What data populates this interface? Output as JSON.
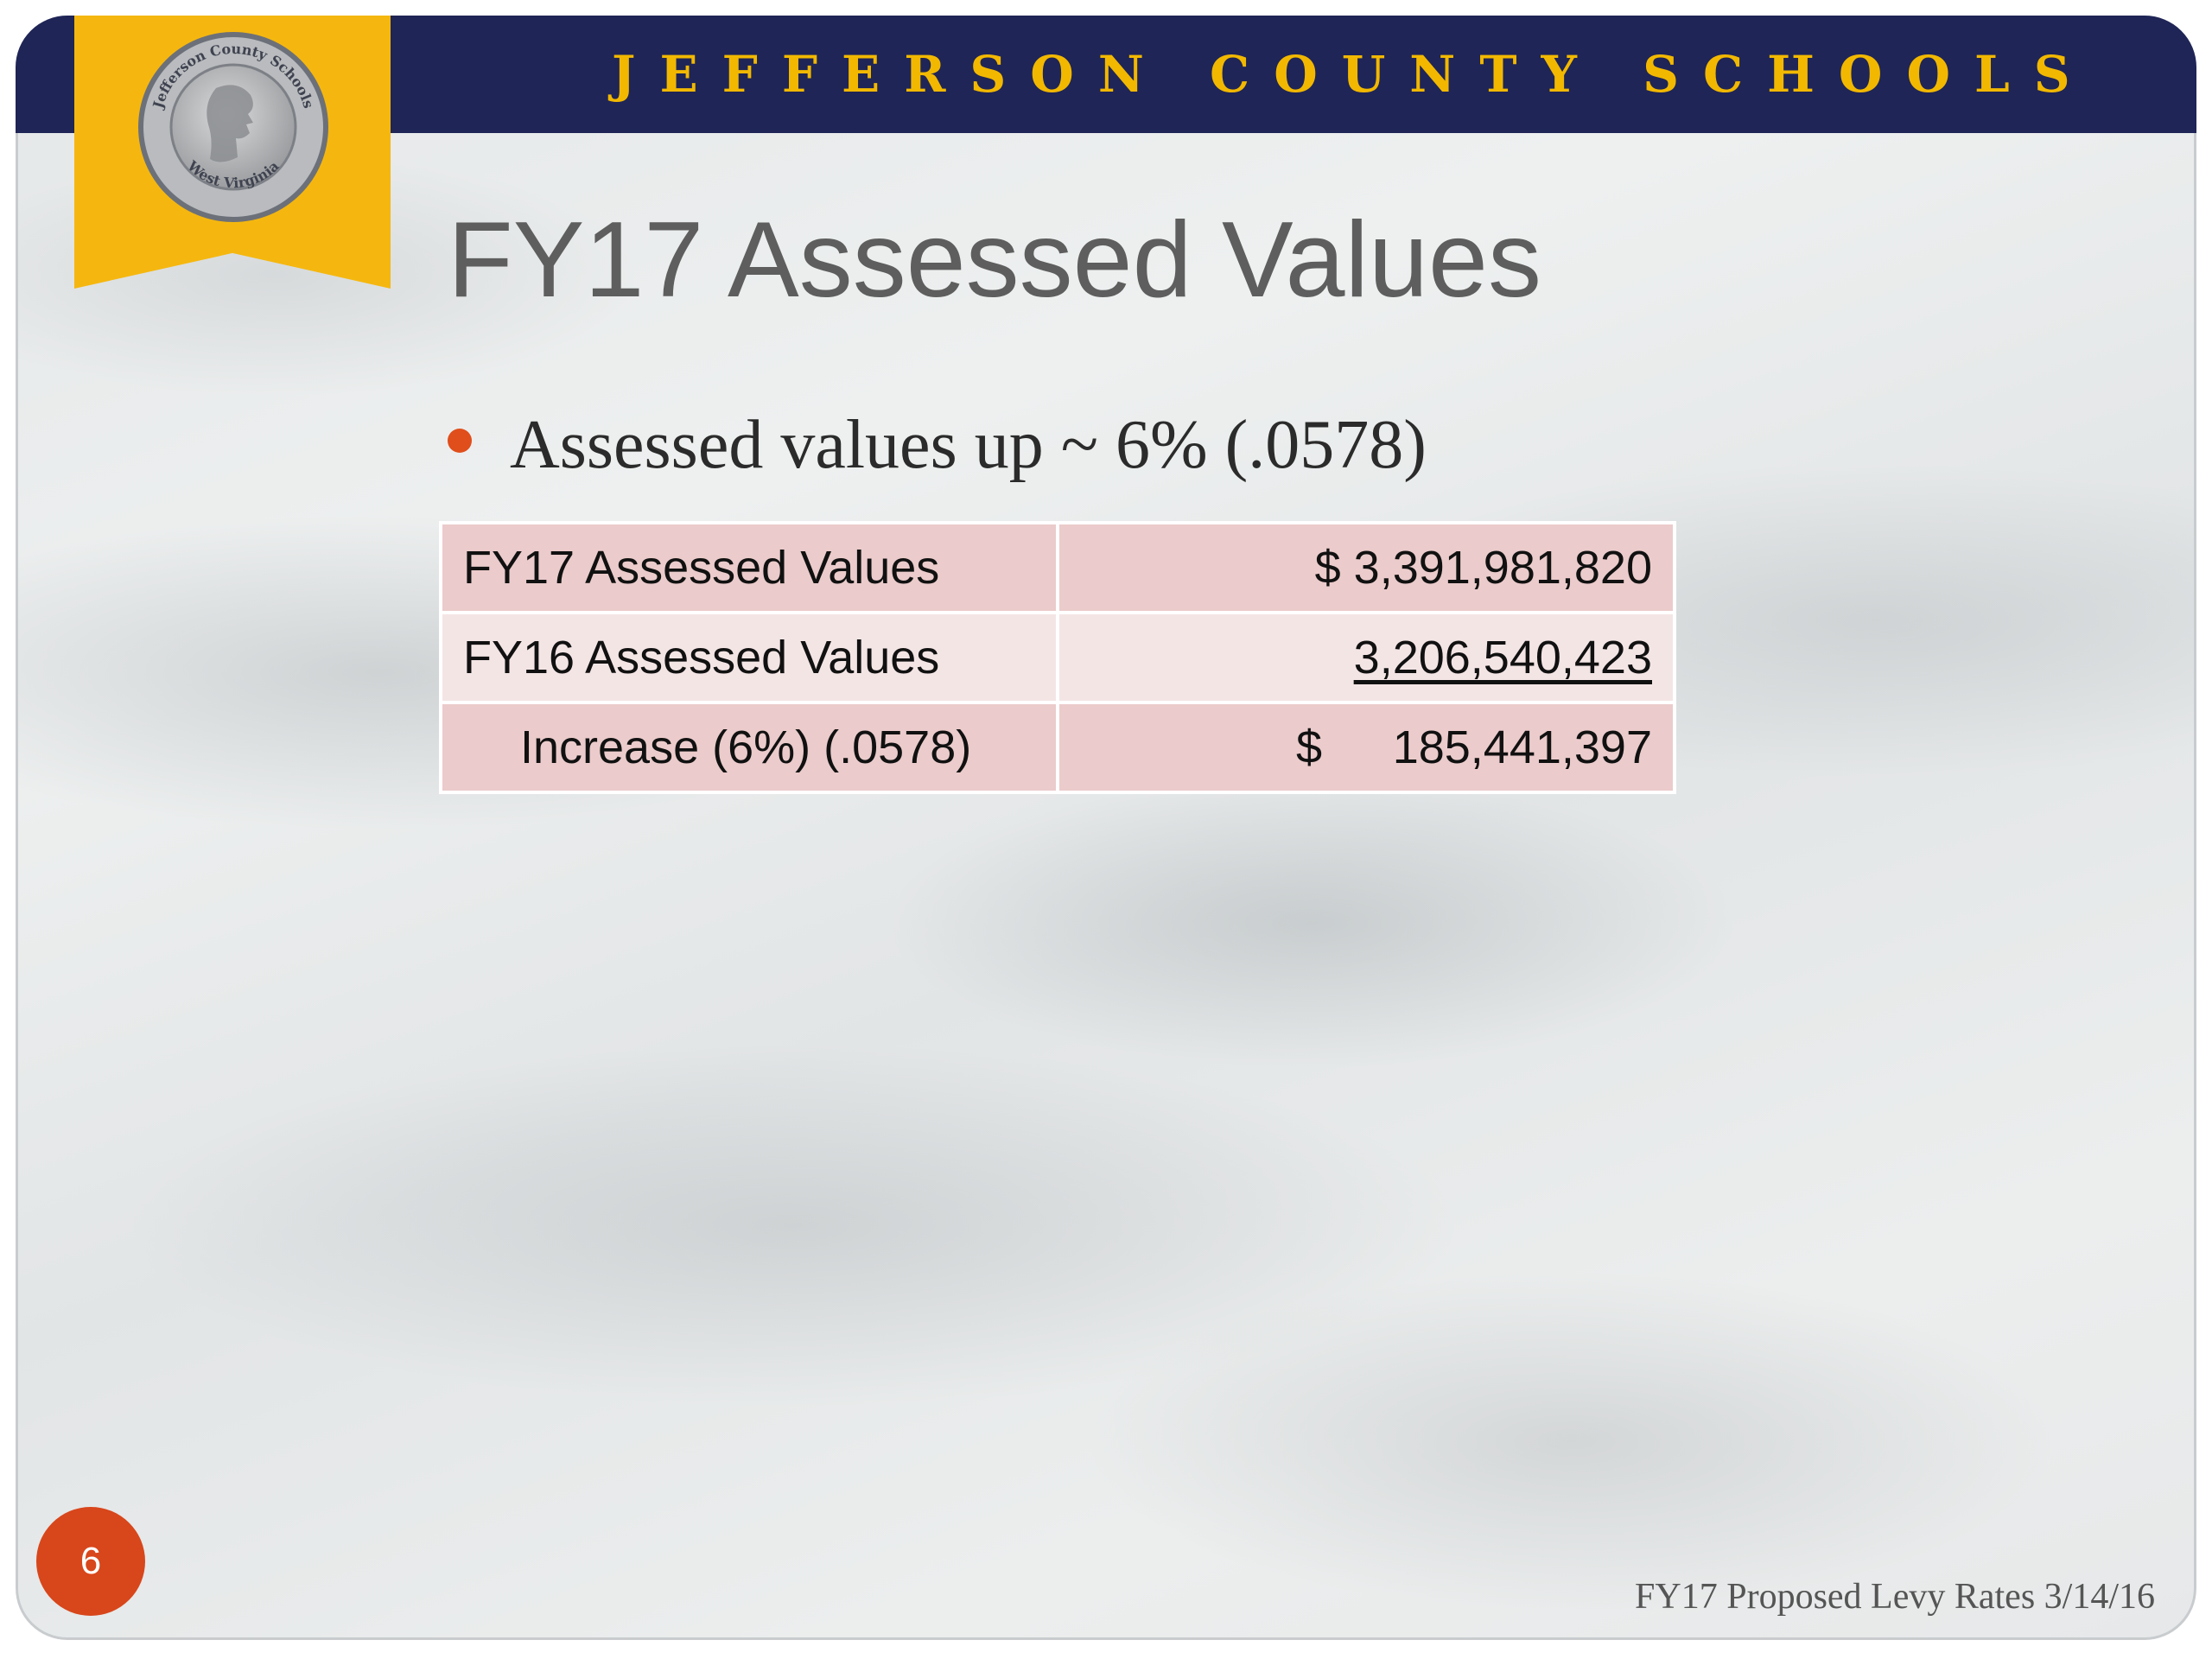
{
  "header": {
    "organization": "JEFFERSON COUNTY SCHOOLS",
    "seal_text": [
      "Jefferson County Schools",
      "West Virginia"
    ]
  },
  "slide": {
    "title": "FY17 Assessed Values",
    "bullet": "Assessed values up ~ 6% (.0578)",
    "page_number": "6",
    "footer": "FY17 Proposed Levy Rates 3/14/16"
  },
  "table": {
    "rows": [
      {
        "label": "FY17 Assessed Values",
        "currency": "$",
        "amount": "3,391,981,820"
      },
      {
        "label": "FY16 Assessed Values",
        "currency": "",
        "amount": "3,206,540,423"
      },
      {
        "label": "Increase (6%) (.0578)",
        "currency": "$",
        "amount": "185,441,397"
      }
    ]
  },
  "colors": {
    "header_navy": "#1f2556",
    "header_text_gold": "#f2b800",
    "ribbon_gold": "#f5b70f",
    "bullet_orange": "#e04e1b",
    "row_dark": "#ebcbcb",
    "row_light": "#f4e5e5",
    "page_badge": "#d8461b"
  }
}
